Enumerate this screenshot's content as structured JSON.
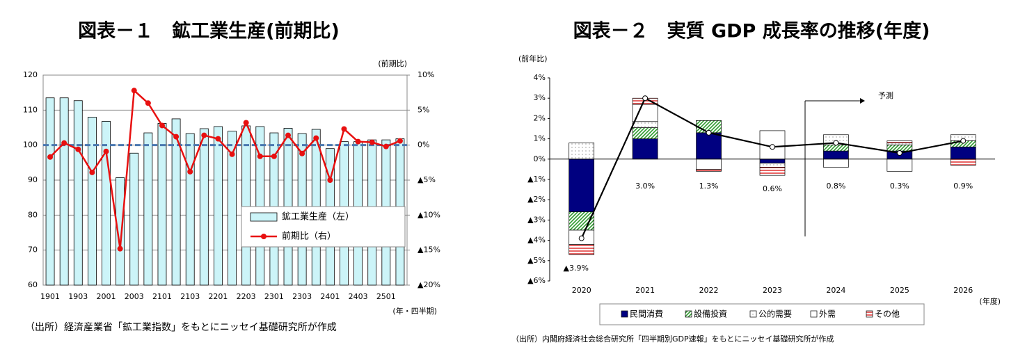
{
  "chart_data": [
    {
      "type": "bar_line",
      "title": "図表－１　鉱工業生産(前期比)",
      "y2_axis_label": "(前期比)",
      "x_axis_label": "(年・四半期)",
      "source": "（出所）経済産業省「鉱工業指数」をもとにニッセイ基礎研究所が作成",
      "categories": [
        "1901",
        null,
        "1903",
        null,
        "2001",
        null,
        "2003",
        null,
        "2101",
        null,
        "2103",
        null,
        "2201",
        null,
        "2203",
        null,
        "2301",
        null,
        "2303",
        null,
        "2401",
        null,
        "2403",
        null,
        "2501",
        null
      ],
      "series": [
        {
          "name": "鉱工業生産（左）",
          "type": "bar",
          "color": "#ccf4f8",
          "values": [
            113.5,
            113.5,
            112.7,
            108,
            106.8,
            90.7,
            97.7,
            103.5,
            106.2,
            107.5,
            103.3,
            104.7,
            105.3,
            104,
            105.5,
            105.3,
            103.5,
            104.8,
            103.3,
            104.5,
            99,
            101,
            101,
            101.5,
            101.5,
            101.8
          ]
        },
        {
          "name": "前期比（右）",
          "type": "line",
          "axis": "y2",
          "color": "#e81010",
          "values": [
            -1.7,
            0.3,
            -0.6,
            -3.9,
            -0.9,
            -14.8,
            7.8,
            6.0,
            2.8,
            1.2,
            -3.8,
            1.4,
            0.9,
            -1.3,
            3.2,
            -1.6,
            -1.6,
            1.4,
            -1.2,
            1.0,
            -5.0,
            2.3,
            0.5,
            0.4,
            -0.2,
            0.6
          ]
        }
      ],
      "reference_line": {
        "value": 100,
        "color": "#4a78b0"
      },
      "ylim": [
        60,
        120
      ],
      "yticks": [
        60,
        70,
        80,
        90,
        100,
        110,
        120
      ],
      "y2lim": [
        -20,
        10
      ],
      "y2ticks": [
        {
          "value": -20,
          "label": "▲20%"
        },
        {
          "value": -15,
          "label": "▲15%"
        },
        {
          "value": -10,
          "label": "▲10%"
        },
        {
          "value": -5,
          "label": "▲5%"
        },
        {
          "value": 0,
          "label": "0%"
        },
        {
          "value": 5,
          "label": "5%"
        },
        {
          "value": 10,
          "label": "10%"
        }
      ],
      "grid": true
    },
    {
      "type": "stacked_bar_line",
      "title": "図表－２　実質 GDP 成長率の推移(年度)",
      "y_axis_label": "(前年比)",
      "x_axis_label": "(年度)",
      "annotation": "予測",
      "source": "（出所）内閣府経済社会総合研究所「四半期別GDP速報」をもとにニッセイ基礎研究所が作成",
      "categories": [
        "2020",
        "2021",
        "2022",
        "2023",
        "2024",
        "2025",
        "2026"
      ],
      "series": [
        {
          "name": "民間消費",
          "color": "#000080",
          "fill_style": "solid",
          "values": [
            -2.6,
            1.0,
            1.3,
            -0.2,
            0.4,
            0.4,
            0.6
          ]
        },
        {
          "name": "設備投資",
          "color": "#2e9a2e",
          "fill_style": "hatch",
          "values": [
            -0.9,
            0.55,
            0.6,
            0,
            0.3,
            0.3,
            0.3
          ]
        },
        {
          "name": "公的需要",
          "color": "#666666",
          "fill_style": "dots",
          "values": [
            0.8,
            0.3,
            0,
            -0.2,
            0.5,
            0.1,
            0.3
          ]
        },
        {
          "name": "外需",
          "color": "#ffffff",
          "fill_style": "solid",
          "values": [
            -0.7,
            0.85,
            -0.5,
            1.4,
            -0.4,
            -0.6,
            0
          ]
        },
        {
          "name": "その他",
          "color": "#e03030",
          "fill_style": "stripes",
          "values": [
            -0.5,
            0.3,
            -0.1,
            -0.4,
            0,
            0.1,
            -0.3
          ]
        }
      ],
      "line": {
        "color": "#000000",
        "values": [
          -3.9,
          3.0,
          1.3,
          0.6,
          0.8,
          0.3,
          0.9
        ],
        "value_labels": [
          "▲3.9%",
          "3.0%",
          "1.3%",
          "0.6%",
          "0.8%",
          "0.3%",
          "0.9%"
        ]
      },
      "ylim": [
        -6,
        4
      ],
      "yticks": [
        {
          "value": -6,
          "label": "▲6%"
        },
        {
          "value": -5,
          "label": "▲5%"
        },
        {
          "value": -4,
          "label": "▲4%"
        },
        {
          "value": -3,
          "label": "▲3%"
        },
        {
          "value": -2,
          "label": "▲2%"
        },
        {
          "value": -1,
          "label": "▲1%"
        },
        {
          "value": 0,
          "label": "0%"
        },
        {
          "value": 1,
          "label": "1%"
        },
        {
          "value": 2,
          "label": "2%"
        },
        {
          "value": 3,
          "label": "3%"
        },
        {
          "value": 4,
          "label": "4%"
        }
      ],
      "grid": false
    }
  ]
}
